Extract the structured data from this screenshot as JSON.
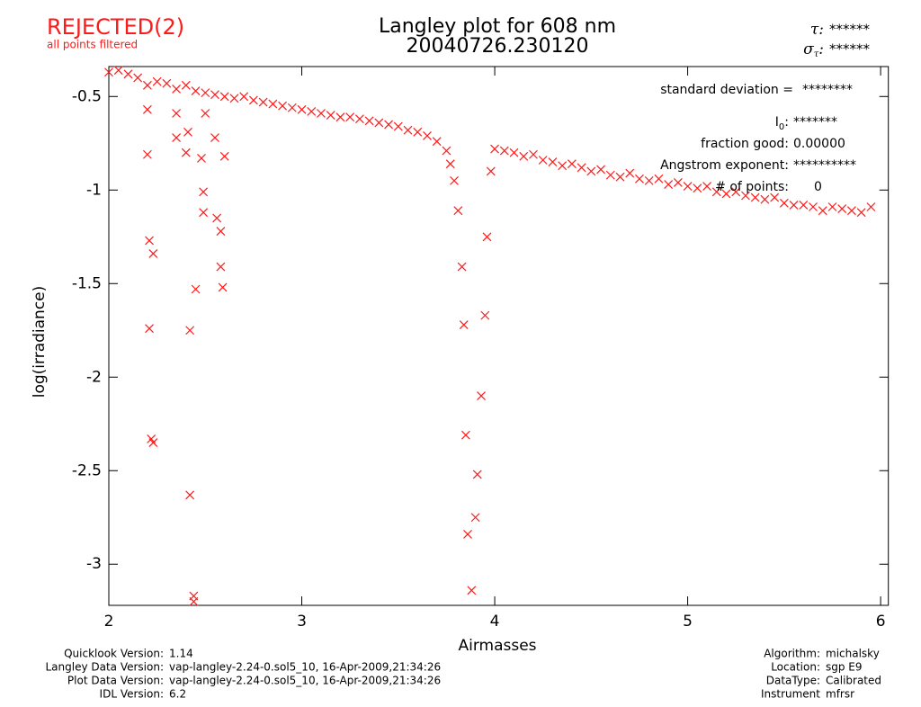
{
  "chart_data": {
    "type": "scatter",
    "title": "Langley plot for 608 nm",
    "subtitle": "20040726.230120",
    "status": {
      "text": "REJECTED(2)",
      "note": "all points filtered"
    },
    "header_stats": [
      {
        "label": "τ",
        "tail": ":",
        "value": "******"
      },
      {
        "label": "σ",
        "sub": "τ",
        "tail": ":",
        "value": "******"
      }
    ],
    "stats": [
      {
        "label": "standard deviation  =",
        "value": "********"
      },
      {
        "label": "I",
        "sub": "0",
        "tail": ":",
        "value": "*******"
      },
      {
        "label": "fraction good:",
        "value": "0.00000"
      },
      {
        "label": "Angstrom exponent:",
        "value": "**********"
      },
      {
        "label": "# of points:",
        "value": "0"
      }
    ],
    "x_label": "Airmasses",
    "y_label": "log(irradiance)",
    "xlim": [
      2,
      6.04
    ],
    "ylim": [
      -3.22,
      -0.34
    ],
    "xticks": [
      2,
      3,
      4,
      5,
      6
    ],
    "yticks": [
      -0.5,
      -1.0,
      -1.5,
      -2.0,
      -2.5,
      -3.0
    ],
    "color": "#ff1a1a",
    "x": [
      2.0,
      2.05,
      2.1,
      2.15,
      2.2,
      2.25,
      2.3,
      2.35,
      2.4,
      2.45,
      2.5,
      2.55,
      2.6,
      2.65,
      2.7,
      2.75,
      2.8,
      2.85,
      2.9,
      2.95,
      3.0,
      3.05,
      3.1,
      3.15,
      3.2,
      3.25,
      3.3,
      3.35,
      3.4,
      3.45,
      3.5,
      3.55,
      3.6,
      3.65,
      3.7,
      3.75,
      4.0,
      4.05,
      4.1,
      4.15,
      4.2,
      4.25,
      4.3,
      4.35,
      4.4,
      4.45,
      4.5,
      4.55,
      4.6,
      4.65,
      4.7,
      4.75,
      4.8,
      4.85,
      4.9,
      4.95,
      5.0,
      5.05,
      5.1,
      5.15,
      5.2,
      5.25,
      5.3,
      5.35,
      5.4,
      5.45,
      5.5,
      5.55,
      5.6,
      5.65,
      5.7,
      5.75,
      5.8,
      5.85,
      5.9,
      5.95,
      2.2,
      2.21,
      2.23,
      2.21,
      2.22,
      2.23,
      2.2,
      2.35,
      2.41,
      2.4,
      2.42,
      2.42,
      2.44,
      2.44,
      2.45,
      2.48,
      2.49,
      2.49,
      2.5,
      2.55,
      2.56,
      2.58,
      2.58,
      2.59,
      2.6,
      2.35,
      3.77,
      3.79,
      3.81,
      3.83,
      3.84,
      3.85,
      3.86,
      3.88,
      3.9,
      3.91,
      3.93,
      3.95,
      3.96,
      3.98
    ],
    "y": [
      -0.37,
      -0.36,
      -0.38,
      -0.4,
      -0.44,
      -0.42,
      -0.43,
      -0.46,
      -0.44,
      -0.47,
      -0.48,
      -0.49,
      -0.5,
      -0.51,
      -0.5,
      -0.52,
      -0.53,
      -0.54,
      -0.55,
      -0.56,
      -0.57,
      -0.58,
      -0.59,
      -0.6,
      -0.61,
      -0.61,
      -0.62,
      -0.63,
      -0.64,
      -0.65,
      -0.66,
      -0.68,
      -0.69,
      -0.71,
      -0.74,
      -0.79,
      -0.78,
      -0.79,
      -0.8,
      -0.82,
      -0.81,
      -0.84,
      -0.85,
      -0.87,
      -0.86,
      -0.88,
      -0.9,
      -0.89,
      -0.92,
      -0.93,
      -0.91,
      -0.94,
      -0.95,
      -0.94,
      -0.97,
      -0.96,
      -0.98,
      -0.99,
      -0.98,
      -1.01,
      -1.02,
      -1.01,
      -1.03,
      -1.04,
      -1.05,
      -1.04,
      -1.07,
      -1.08,
      -1.08,
      -1.09,
      -1.11,
      -1.09,
      -1.1,
      -1.11,
      -1.12,
      -1.09,
      -0.81,
      -1.27,
      -1.34,
      -1.74,
      -2.33,
      -2.35,
      -0.57,
      -0.72,
      -0.69,
      -0.8,
      -1.75,
      -2.63,
      -3.17,
      -3.2,
      -1.53,
      -0.83,
      -1.01,
      -1.12,
      -0.59,
      -0.72,
      -1.15,
      -1.22,
      -1.41,
      -1.52,
      -0.82,
      -0.59,
      -0.86,
      -0.95,
      -1.11,
      -1.41,
      -1.72,
      -2.31,
      -2.84,
      -3.14,
      -2.75,
      -2.52,
      -2.1,
      -1.67,
      -1.25,
      -0.9
    ]
  },
  "footer": {
    "left": [
      {
        "label": "Quicklook Version:",
        "value": "1.14"
      },
      {
        "label": "Langley Data Version:",
        "value": "vap-langley-2.24-0.sol5_10, 16-Apr-2009,21:34:26"
      },
      {
        "label": "Plot Data Version:",
        "value": "vap-langley-2.24-0.sol5_10, 16-Apr-2009,21:34:26"
      },
      {
        "label": "IDL Version:",
        "value": "6.2"
      }
    ],
    "right": [
      {
        "label": "Algorithm:",
        "value": "michalsky"
      },
      {
        "label": "Location:",
        "value": "sgp E9"
      },
      {
        "label": "DataType:",
        "value": "Calibrated"
      },
      {
        "label": "Instrument",
        "value": "mfrsr"
      }
    ]
  }
}
